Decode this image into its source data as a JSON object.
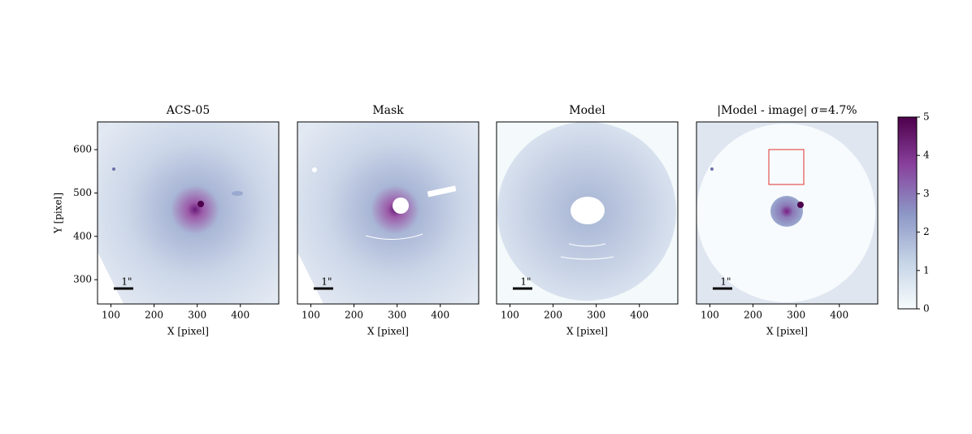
{
  "chart_data": [
    {
      "type": "image",
      "title": "ACS-05",
      "xlabel": "X [pixel]",
      "ylabel": "Y [pixel]",
      "scalebar_label": "1\"",
      "xlim": [
        69,
        489
      ],
      "ylim": [
        244,
        664
      ],
      "xticks": [
        100,
        200,
        300,
        400
      ],
      "yticks": [
        300,
        400,
        500,
        600
      ]
    },
    {
      "type": "image",
      "title": "Mask",
      "xlabel": "X [pixel]",
      "scalebar_label": "1\"",
      "xlim": [
        69,
        489
      ],
      "ylim": [
        244,
        664
      ],
      "xticks": [
        100,
        200,
        300,
        400
      ]
    },
    {
      "type": "image",
      "title": "Model",
      "xlabel": "X [pixel]",
      "scalebar_label": "1\"",
      "xlim": [
        69,
        489
      ],
      "ylim": [
        244,
        664
      ],
      "xticks": [
        100,
        200,
        300,
        400
      ]
    },
    {
      "type": "image",
      "title": "|Model - image| σ=4.7%",
      "xlabel": "X [pixel]",
      "scalebar_label": "1\"",
      "xlim": [
        69,
        489
      ],
      "ylim": [
        244,
        664
      ],
      "xticks": [
        100,
        200,
        300,
        400
      ]
    },
    {
      "type": "colorbar",
      "ylim": [
        0,
        5
      ],
      "yticks": [
        0,
        1,
        2,
        3,
        4,
        5
      ],
      "colors": [
        "#f7fcfd",
        "#c4d3e6",
        "#8c96c6",
        "#88419d",
        "#4d004b"
      ]
    }
  ]
}
